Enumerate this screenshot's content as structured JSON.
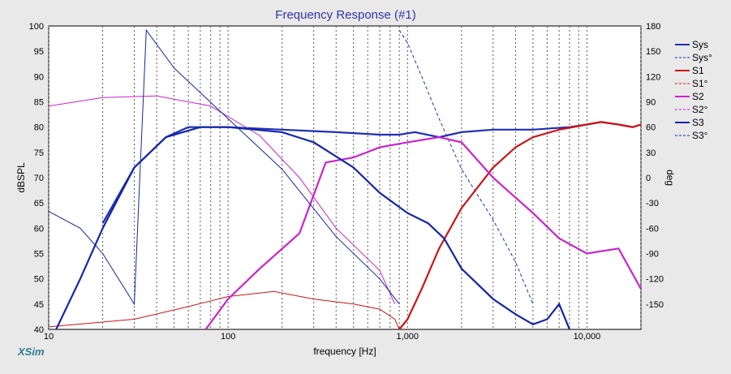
{
  "window": {
    "title": "Frequency Response (#1)",
    "brand": "XSim"
  },
  "colors": {
    "sys": "#1f2fb4",
    "s1": "#cc1414",
    "s2": "#cc22cc",
    "s3": "#1226a8",
    "grid": "#555555",
    "background": "#ffffff"
  },
  "chart_data": {
    "type": "line",
    "title": "Frequency Response (#1)",
    "xlabel": "frequency [Hz]",
    "ylabel": "dBSPL",
    "y2label": "deg",
    "xscale": "log",
    "xlim": [
      10,
      20000
    ],
    "ylim": [
      40,
      100
    ],
    "y2lim": [
      -180,
      180
    ],
    "grid": true,
    "legend_position": "right",
    "x_ticks": [
      "10",
      "100",
      "1,000",
      "10,000"
    ],
    "y_ticks": [
      "100",
      "95",
      "90",
      "85",
      "80",
      "75",
      "70",
      "65",
      "60",
      "55",
      "50",
      "45",
      "40"
    ],
    "y2_ticks": [
      "180",
      "150",
      "120",
      "90",
      "60",
      "30",
      "0",
      "-30",
      "-60",
      "-90",
      "-120",
      "-150"
    ],
    "legend": [
      "Sys",
      "Sys°",
      "S1",
      "S1°",
      "S2",
      "S2°",
      "S3",
      "S3°"
    ],
    "series": [
      {
        "name": "Sys",
        "axis": "left",
        "style": "solid",
        "color": "#1f2fb4",
        "points": [
          [
            20,
            61
          ],
          [
            30,
            72
          ],
          [
            45,
            78
          ],
          [
            60,
            80
          ],
          [
            100,
            80
          ],
          [
            200,
            79.5
          ],
          [
            400,
            79
          ],
          [
            700,
            78.5
          ],
          [
            900,
            78.5
          ],
          [
            1100,
            79
          ],
          [
            1500,
            78
          ],
          [
            2000,
            79
          ],
          [
            3000,
            79.5
          ],
          [
            5000,
            79.5
          ],
          [
            8000,
            80
          ],
          [
            10000,
            80.5
          ],
          [
            12000,
            81
          ],
          [
            15000,
            80.5
          ],
          [
            18000,
            80
          ],
          [
            20000,
            80.5
          ]
        ]
      },
      {
        "name": "Sys°",
        "axis": "right",
        "style": "dashed",
        "color": "#1f2fb4",
        "points": [
          [
            900,
            175
          ],
          [
            1000,
            160
          ],
          [
            1200,
            120
          ],
          [
            1500,
            70
          ],
          [
            2000,
            10
          ],
          [
            3000,
            -50
          ],
          [
            4000,
            -100
          ],
          [
            5000,
            -150
          ]
        ]
      },
      {
        "name": "S1",
        "axis": "left",
        "style": "solid",
        "color": "#cc1414",
        "points": [
          [
            900,
            40
          ],
          [
            1000,
            42
          ],
          [
            1200,
            48
          ],
          [
            1500,
            56
          ],
          [
            2000,
            64
          ],
          [
            3000,
            72
          ],
          [
            4000,
            76
          ],
          [
            5000,
            78
          ],
          [
            7000,
            79.5
          ],
          [
            10000,
            80.5
          ],
          [
            12000,
            81
          ],
          [
            15000,
            80.5
          ],
          [
            18000,
            80
          ],
          [
            20000,
            80.5
          ]
        ]
      },
      {
        "name": "S1°",
        "axis": "left",
        "style": "solid-thin",
        "color": "#cc1414",
        "points": [
          [
            10,
            40.5
          ],
          [
            30,
            42
          ],
          [
            60,
            44.5
          ],
          [
            100,
            46.5
          ],
          [
            180,
            47.5
          ],
          [
            300,
            46
          ],
          [
            500,
            45
          ],
          [
            700,
            44
          ],
          [
            850,
            42
          ],
          [
            900,
            40
          ]
        ]
      },
      {
        "name": "S2",
        "axis": "left",
        "style": "solid",
        "color": "#cc22cc",
        "points": [
          [
            75,
            40
          ],
          [
            100,
            46
          ],
          [
            150,
            52
          ],
          [
            250,
            59
          ],
          [
            350,
            73
          ],
          [
            500,
            74
          ],
          [
            700,
            76
          ],
          [
            1000,
            77
          ],
          [
            1500,
            78
          ],
          [
            2000,
            77
          ],
          [
            3000,
            70
          ],
          [
            5000,
            63
          ],
          [
            7000,
            58
          ],
          [
            10000,
            55
          ],
          [
            15000,
            56
          ],
          [
            20000,
            48
          ]
        ]
      },
      {
        "name": "S2°",
        "axis": "right",
        "style": "solid-thin",
        "color": "#cc22cc",
        "points": [
          [
            10,
            85
          ],
          [
            20,
            95
          ],
          [
            40,
            97
          ],
          [
            80,
            85
          ],
          [
            150,
            50
          ],
          [
            250,
            0
          ],
          [
            400,
            -60
          ],
          [
            700,
            -110
          ],
          [
            850,
            -150
          ]
        ]
      },
      {
        "name": "S3",
        "axis": "left",
        "style": "solid",
        "color": "#1226a8",
        "points": [
          [
            11,
            40
          ],
          [
            15,
            50
          ],
          [
            20,
            60
          ],
          [
            30,
            72
          ],
          [
            45,
            78
          ],
          [
            70,
            80
          ],
          [
            100,
            80
          ],
          [
            200,
            79
          ],
          [
            300,
            77
          ],
          [
            500,
            72
          ],
          [
            700,
            67
          ],
          [
            1000,
            63
          ],
          [
            1300,
            61
          ],
          [
            1600,
            58
          ],
          [
            2000,
            52
          ],
          [
            3000,
            46
          ],
          [
            4000,
            43
          ],
          [
            5000,
            41
          ],
          [
            6000,
            42
          ],
          [
            7000,
            45
          ],
          [
            8000,
            40
          ]
        ]
      },
      {
        "name": "S3°",
        "axis": "right",
        "style": "solid-thin",
        "color": "#1226a8",
        "points": [
          [
            10,
            -40
          ],
          [
            15,
            -60
          ],
          [
            20,
            -90
          ],
          [
            30,
            -150
          ],
          [
            35,
            175
          ],
          [
            50,
            130
          ],
          [
            100,
            70
          ],
          [
            200,
            10
          ],
          [
            400,
            -70
          ],
          [
            700,
            -120
          ],
          [
            900,
            -150
          ]
        ]
      }
    ]
  }
}
